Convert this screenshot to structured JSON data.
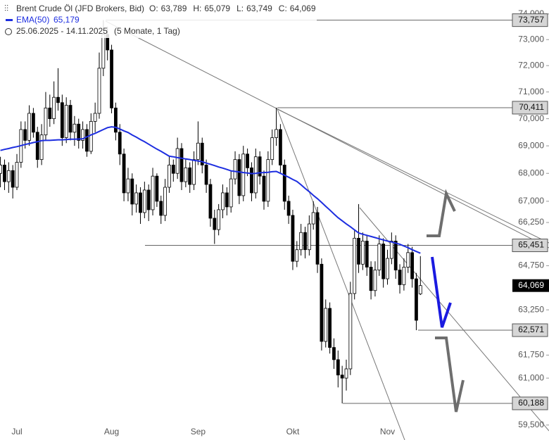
{
  "chart_data": {
    "type": "candlestick",
    "header": {
      "title": "Brent Crude Öl (JFD Brokers, Bid)",
      "ohlc": [
        {
          "key": "O:",
          "text": "63,789"
        },
        {
          "key": "H:",
          "text": "65,079"
        },
        {
          "key": "L:",
          "text": "63,749"
        },
        {
          "key": "C:",
          "text": "64,069"
        }
      ],
      "range": "25.06.2025 - 14.11.2025",
      "span": "(5 Monate, 1 Tag)"
    },
    "log": true,
    "ylim": [
      59.03,
      74.55
    ],
    "yticks": [
      {
        "value": 74,
        "label": "74,000"
      },
      {
        "value": 73,
        "label": "73,000"
      },
      {
        "value": 72,
        "label": "72,000"
      },
      {
        "value": 71,
        "label": "71,000"
      },
      {
        "value": 70,
        "label": "70,000"
      },
      {
        "value": 69,
        "label": "69,000"
      },
      {
        "value": 68,
        "label": "68,000"
      },
      {
        "value": 67,
        "label": "67,000"
      },
      {
        "value": 66.25,
        "label": "66,250"
      },
      {
        "value": 64.75,
        "label": "64,750"
      },
      {
        "value": 63.25,
        "label": "63,250"
      },
      {
        "value": 61.75,
        "label": "61,750"
      },
      {
        "value": 61,
        "label": "61,000"
      },
      {
        "value": 59.5,
        "label": "59,500"
      }
    ],
    "levels": [
      {
        "value": 73.757,
        "label": "73,757"
      },
      {
        "value": 70.411,
        "label": "70,411"
      },
      {
        "value": 65.451,
        "label": "65,451"
      },
      {
        "value": 62.571,
        "label": "62,571"
      },
      {
        "value": 60.188,
        "label": "60,188"
      }
    ],
    "last": {
      "value": 64.069,
      "label": "64,069"
    },
    "categories": [
      null,
      null,
      null,
      null,
      "Jul",
      null,
      null,
      null,
      null,
      null,
      null,
      null,
      null,
      null,
      null,
      null,
      null,
      null,
      null,
      null,
      null,
      null,
      null,
      null,
      null,
      null,
      null,
      "Aug",
      null,
      null,
      null,
      null,
      null,
      null,
      null,
      null,
      null,
      null,
      null,
      null,
      null,
      null,
      null,
      null,
      null,
      null,
      null,
      null,
      "Sep",
      null,
      null,
      null,
      null,
      null,
      null,
      null,
      null,
      null,
      null,
      null,
      null,
      null,
      null,
      null,
      null,
      null,
      null,
      null,
      null,
      null,
      null,
      "Okt",
      null,
      null,
      null,
      null,
      null,
      null,
      null,
      null,
      null,
      null,
      null,
      null,
      null,
      null,
      null,
      null,
      null,
      null,
      null,
      null,
      null,
      null,
      "Nov",
      null,
      null,
      null,
      null,
      null,
      null,
      null,
      null,
      null
    ],
    "ohlc": [
      [
        68.0,
        68.6,
        67.5,
        68.3
      ],
      [
        68.3,
        68.5,
        67.4,
        67.7
      ],
      [
        67.7,
        68.4,
        67.3,
        68.1
      ],
      [
        68.1,
        68.3,
        67.1,
        67.5
      ],
      [
        67.5,
        68.7,
        67.4,
        68.4
      ],
      [
        68.4,
        69.9,
        68.2,
        69.6
      ],
      [
        69.6,
        69.9,
        68.9,
        69.2
      ],
      [
        69.2,
        70.5,
        69.0,
        70.2
      ],
      [
        70.2,
        70.4,
        69.3,
        69.5
      ],
      [
        69.5,
        69.7,
        68.2,
        68.5
      ],
      [
        68.5,
        69.8,
        68.3,
        69.4
      ],
      [
        69.4,
        71.0,
        69.2,
        70.4
      ],
      [
        70.4,
        70.9,
        69.7,
        70.0
      ],
      [
        70.0,
        71.4,
        69.8,
        70.8
      ],
      [
        70.8,
        71.9,
        70.3,
        70.6
      ],
      [
        70.6,
        70.9,
        69.0,
        69.3
      ],
      [
        69.3,
        70.8,
        69.1,
        70.5
      ],
      [
        70.5,
        70.7,
        69.2,
        69.5
      ],
      [
        69.5,
        70.1,
        69.0,
        69.8
      ],
      [
        69.8,
        70.0,
        68.9,
        69.2
      ],
      [
        69.2,
        69.9,
        68.9,
        69.6
      ],
      [
        69.6,
        69.8,
        68.6,
        68.8
      ],
      [
        68.8,
        70.2,
        68.7,
        69.9
      ],
      [
        69.9,
        70.6,
        69.5,
        70.2
      ],
      [
        70.2,
        72.5,
        70.0,
        71.9
      ],
      [
        71.9,
        73.757,
        71.6,
        73.2
      ],
      [
        73.2,
        73.5,
        72.2,
        72.6
      ],
      [
        72.6,
        72.8,
        70.2,
        70.4
      ],
      [
        70.4,
        70.6,
        69.2,
        69.5
      ],
      [
        69.5,
        69.8,
        68.3,
        68.7
      ],
      [
        68.7,
        68.9,
        67.0,
        67.3
      ],
      [
        67.3,
        68.2,
        67.0,
        67.8
      ],
      [
        67.8,
        68.0,
        66.5,
        66.9
      ],
      [
        66.9,
        67.6,
        66.6,
        67.3
      ],
      [
        67.3,
        67.5,
        66.2,
        66.6
      ],
      [
        66.6,
        67.7,
        66.4,
        67.4
      ],
      [
        67.4,
        67.6,
        66.3,
        66.7
      ],
      [
        66.7,
        68.2,
        66.5,
        67.9
      ],
      [
        67.9,
        68.0,
        66.8,
        67.0
      ],
      [
        67.0,
        67.2,
        66.2,
        66.5
      ],
      [
        66.5,
        67.8,
        66.3,
        67.5
      ],
      [
        67.5,
        68.6,
        67.3,
        68.3
      ],
      [
        68.3,
        68.5,
        67.7,
        68.0
      ],
      [
        68.0,
        69.3,
        67.8,
        68.9
      ],
      [
        68.9,
        69.1,
        67.4,
        67.7
      ],
      [
        67.7,
        68.5,
        67.5,
        68.2
      ],
      [
        68.2,
        68.4,
        67.3,
        67.6
      ],
      [
        67.6,
        68.8,
        67.4,
        68.5
      ],
      [
        68.5,
        69.9,
        68.3,
        69.1
      ],
      [
        69.1,
        69.3,
        68.0,
        68.3
      ],
      [
        68.3,
        68.5,
        67.3,
        67.6
      ],
      [
        67.6,
        67.8,
        66.1,
        66.4
      ],
      [
        66.4,
        66.7,
        65.5,
        66.0
      ],
      [
        66.0,
        66.9,
        65.8,
        66.7
      ],
      [
        66.7,
        67.6,
        66.4,
        67.3
      ],
      [
        67.3,
        67.5,
        66.5,
        66.8
      ],
      [
        66.8,
        68.1,
        66.6,
        67.8
      ],
      [
        67.8,
        68.8,
        67.6,
        68.5
      ],
      [
        68.5,
        68.7,
        66.9,
        67.2
      ],
      [
        67.2,
        69.0,
        67.0,
        68.7
      ],
      [
        68.7,
        68.9,
        67.9,
        68.2
      ],
      [
        68.2,
        68.4,
        67.0,
        67.3
      ],
      [
        67.3,
        68.9,
        67.1,
        68.6
      ],
      [
        68.6,
        68.8,
        67.6,
        67.9
      ],
      [
        67.9,
        68.1,
        66.7,
        67.0
      ],
      [
        67.0,
        68.8,
        66.8,
        68.5
      ],
      [
        68.5,
        69.6,
        68.3,
        69.3
      ],
      [
        69.3,
        70.411,
        69.0,
        69.6
      ],
      [
        69.6,
        69.8,
        68.0,
        68.3
      ],
      [
        68.3,
        68.5,
        66.7,
        67.0
      ],
      [
        67.0,
        67.2,
        66.2,
        66.5
      ],
      [
        66.5,
        66.7,
        64.6,
        64.9
      ],
      [
        64.9,
        65.6,
        64.7,
        65.3
      ],
      [
        65.3,
        66.2,
        65.1,
        65.9
      ],
      [
        65.9,
        66.1,
        65.0,
        65.3
      ],
      [
        65.3,
        66.5,
        65.1,
        66.2
      ],
      [
        66.2,
        67.0,
        66.0,
        66.6
      ],
      [
        66.6,
        66.8,
        64.5,
        64.8
      ],
      [
        64.8,
        65.0,
        61.9,
        62.2
      ],
      [
        62.2,
        63.6,
        62.0,
        63.3
      ],
      [
        63.3,
        63.5,
        61.8,
        62.0
      ],
      [
        62.0,
        62.3,
        61.3,
        61.6
      ],
      [
        61.6,
        61.9,
        60.7,
        61.1
      ],
      [
        61.1,
        61.4,
        60.188,
        61.0
      ],
      [
        61.0,
        61.6,
        60.6,
        61.3
      ],
      [
        61.3,
        64.2,
        61.1,
        63.8
      ],
      [
        63.8,
        66.0,
        63.6,
        65.7
      ],
      [
        65.7,
        66.9,
        64.5,
        64.8
      ],
      [
        64.8,
        65.9,
        64.6,
        65.6
      ],
      [
        65.6,
        65.8,
        64.4,
        64.7
      ],
      [
        64.7,
        64.9,
        63.6,
        63.9
      ],
      [
        63.9,
        64.9,
        63.7,
        64.6
      ],
      [
        64.6,
        65.8,
        64.4,
        65.5
      ],
      [
        65.5,
        65.7,
        64.0,
        64.3
      ],
      [
        64.3,
        65.3,
        64.1,
        65.0
      ],
      [
        65.0,
        65.9,
        64.8,
        65.6
      ],
      [
        65.6,
        65.8,
        64.3,
        64.6
      ],
      [
        64.6,
        64.8,
        63.8,
        64.1
      ],
      [
        64.1,
        65.0,
        63.9,
        64.7
      ],
      [
        64.7,
        65.5,
        64.5,
        65.2
      ],
      [
        65.2,
        65.4,
        64.0,
        64.3
      ],
      [
        64.3,
        64.5,
        62.571,
        62.9
      ],
      [
        63.789,
        65.079,
        63.749,
        64.069
      ]
    ],
    "ema": {
      "name": "EMA(50)",
      "value_label": "65,179",
      "color": "#1d2ee0",
      "values": [
        68.83,
        68.87,
        68.9,
        68.94,
        68.97,
        69.01,
        69.05,
        69.08,
        69.12,
        69.15,
        69.19,
        69.2,
        69.2,
        69.21,
        69.22,
        69.22,
        69.23,
        69.24,
        69.24,
        69.25,
        69.26,
        69.33,
        69.4,
        69.46,
        69.53,
        69.6,
        69.67,
        69.7,
        69.68,
        69.62,
        69.55,
        69.49,
        69.4,
        69.32,
        69.23,
        69.15,
        69.06,
        68.97,
        68.88,
        68.8,
        68.71,
        68.62,
        68.6,
        68.57,
        68.55,
        68.52,
        68.5,
        68.47,
        68.45,
        68.42,
        68.37,
        68.33,
        68.28,
        68.23,
        68.19,
        68.14,
        68.09,
        68.07,
        68.05,
        68.03,
        68.01,
        67.99,
        68.0,
        68.02,
        68.03,
        68.04,
        68.06,
        68.07,
        68.0,
        67.93,
        67.86,
        67.78,
        67.71,
        67.59,
        67.46,
        67.34,
        67.21,
        67.09,
        66.96,
        66.82,
        66.69,
        66.55,
        66.42,
        66.31,
        66.2,
        66.1,
        65.99,
        65.88,
        65.84,
        65.8,
        65.76,
        65.72,
        65.68,
        65.64,
        65.6,
        65.57,
        65.53,
        65.49,
        65.43,
        65.37,
        65.3,
        65.24,
        65.179
      ]
    }
  }
}
